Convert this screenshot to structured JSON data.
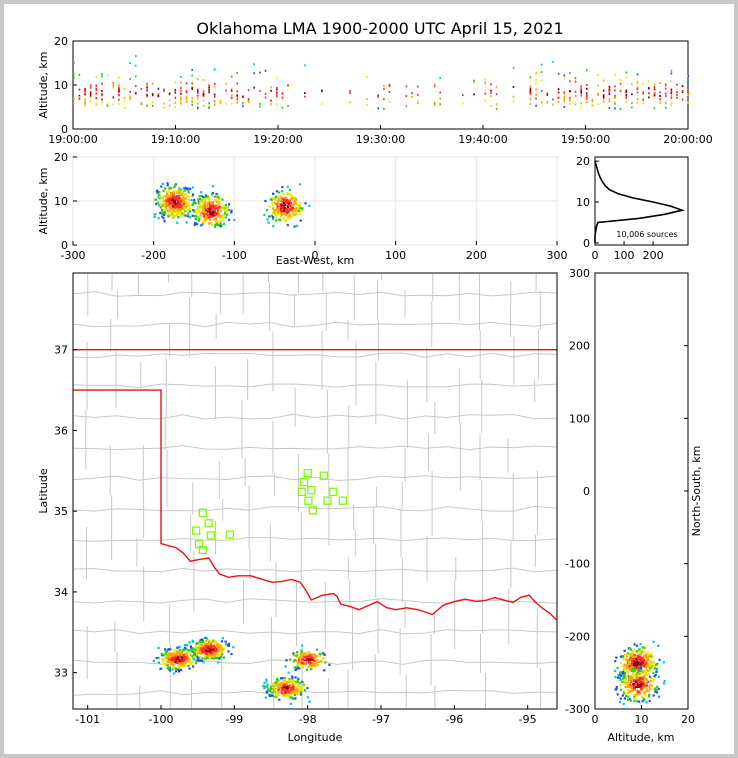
{
  "title": "Oklahoma LMA 1900-2000 UTC April 15, 2021",
  "colors": {
    "state_border": "#ee1111",
    "county_lines": "#c8c8c8",
    "stations": "#7cfc00",
    "frame_bg": "#c8c8c8"
  },
  "chart_data": [
    {
      "id": "time-height",
      "type": "scatter",
      "xlabel": "",
      "ylabel": "Altitude, km",
      "xticks": [
        "19:00:00",
        "19:10:00",
        "19:20:00",
        "19:30:00",
        "19:40:00",
        "19:50:00",
        "20:00:00"
      ],
      "xlim_minutes": [
        0,
        60
      ],
      "ylim": [
        0,
        20
      ],
      "yticks": [
        0,
        10,
        20
      ]
    },
    {
      "id": "ew-height",
      "type": "scatter",
      "xlabel": "East-West, km",
      "ylabel": "Altitude, km",
      "xlim": [
        -300,
        300
      ],
      "xticks": [
        -300,
        -200,
        -100,
        0,
        100,
        200,
        300
      ],
      "ylim": [
        0,
        20
      ],
      "yticks": [
        0,
        10,
        20
      ],
      "clusters": [
        {
          "x_km": -175,
          "alt_km": 10,
          "weight": 1.3
        },
        {
          "x_km": -130,
          "alt_km": 8,
          "weight": 1.0
        },
        {
          "x_km": -38,
          "alt_km": 9,
          "weight": 0.9
        }
      ]
    },
    {
      "id": "altitude-histogram",
      "type": "line",
      "xlabel": "",
      "ylabel": "",
      "xlim": [
        0,
        320
      ],
      "xticks": [
        0,
        100,
        200
      ],
      "ylim": [
        -0.5,
        21
      ],
      "yticks": [
        0,
        10,
        20
      ],
      "annotation": "10,006 sources",
      "altitude_km": [
        0,
        2,
        4,
        5,
        6,
        7,
        8,
        9,
        10,
        11,
        12,
        13,
        14,
        15,
        16,
        17,
        18,
        19,
        20
      ],
      "count": [
        0,
        0,
        5,
        10,
        150,
        240,
        300,
        260,
        200,
        130,
        80,
        50,
        35,
        25,
        18,
        12,
        8,
        4,
        0
      ]
    },
    {
      "id": "plan-view",
      "type": "scatter",
      "xlabel": "Longitude",
      "ylabel": "Latitude",
      "xlim": [
        -101.2,
        -94.6
      ],
      "ylim": [
        32.55,
        37.95
      ],
      "xticks": [
        -101,
        -100,
        -99,
        -98,
        -97,
        -96,
        -95
      ],
      "yticks": [
        33,
        34,
        35,
        36,
        37
      ],
      "stations": [
        {
          "lon": -99.43,
          "lat": 34.98
        },
        {
          "lon": -99.35,
          "lat": 34.85
        },
        {
          "lon": -99.52,
          "lat": 34.76
        },
        {
          "lon": -99.32,
          "lat": 34.7
        },
        {
          "lon": -99.48,
          "lat": 34.59
        },
        {
          "lon": -99.43,
          "lat": 34.52
        },
        {
          "lon": -99.06,
          "lat": 34.71
        },
        {
          "lon": -98.0,
          "lat": 35.47
        },
        {
          "lon": -98.05,
          "lat": 35.36
        },
        {
          "lon": -98.08,
          "lat": 35.24
        },
        {
          "lon": -97.95,
          "lat": 35.26
        },
        {
          "lon": -97.78,
          "lat": 35.44
        },
        {
          "lon": -97.65,
          "lat": 35.24
        },
        {
          "lon": -97.73,
          "lat": 35.13
        },
        {
          "lon": -97.52,
          "lat": 35.13
        },
        {
          "lon": -97.99,
          "lat": 35.13
        },
        {
          "lon": -97.93,
          "lat": 35.01
        }
      ],
      "clusters": [
        {
          "lon": -99.78,
          "lat": 33.18,
          "weight": 1.1
        },
        {
          "lon": -99.35,
          "lat": 33.3,
          "weight": 1.2
        },
        {
          "lon": -98.3,
          "lat": 32.82,
          "weight": 1.0
        },
        {
          "lon": -98.0,
          "lat": 33.17,
          "weight": 0.6
        }
      ]
    },
    {
      "id": "ns-altitude",
      "type": "scatter",
      "xlabel": "Altitude, km",
      "ylabel": "North-South, km",
      "xlim": [
        0,
        20
      ],
      "xticks": [
        0,
        10,
        20
      ],
      "ylim": [
        -300,
        300
      ],
      "yticks": [
        -300,
        -200,
        -100,
        0,
        100,
        200,
        300
      ],
      "clusters": [
        {
          "alt_km": 9,
          "ns_km": -235,
          "weight": 1.3
        },
        {
          "alt_km": 9,
          "ns_km": -265,
          "weight": 0.9
        }
      ]
    }
  ]
}
